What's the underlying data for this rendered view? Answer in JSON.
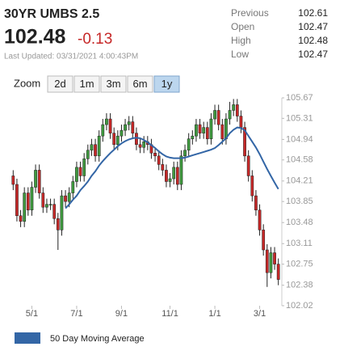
{
  "header": {
    "title": "30YR UMBS 2.5",
    "price": 102.48,
    "change": -0.13,
    "updated": "Last Updated: 03/31/2021 4:00:43PM"
  },
  "stats": [
    {
      "label": "Previous",
      "value": 102.61
    },
    {
      "label": "Open",
      "value": 102.47
    },
    {
      "label": "High",
      "value": 102.48
    },
    {
      "label": "Low",
      "value": 102.47
    }
  ],
  "zoom": {
    "label": "Zoom",
    "options": [
      "2d",
      "1m",
      "3m",
      "6m",
      "1y"
    ],
    "active": "1y"
  },
  "chart_data": {
    "type": "candlestick",
    "up_color": "#3f9a3f",
    "down_color": "#c62828",
    "categories": [
      null,
      null,
      null,
      null,
      null,
      "5/1",
      null,
      null,
      null,
      null,
      null,
      null,
      null,
      null,
      null,
      null,
      null,
      "7/1",
      null,
      null,
      null,
      null,
      null,
      null,
      null,
      null,
      null,
      null,
      null,
      "9/1",
      null,
      null,
      null,
      null,
      null,
      null,
      null,
      null,
      null,
      null,
      null,
      null,
      "11/1",
      null,
      null,
      null,
      null,
      null,
      null,
      null,
      null,
      null,
      null,
      null,
      "1/1",
      null,
      null,
      null,
      null,
      null,
      null,
      null,
      null,
      null,
      null,
      null,
      "3/1",
      null,
      null,
      null,
      null,
      null
    ],
    "open": [
      104.3,
      104.15,
      103.6,
      103.5,
      104.0,
      103.7,
      104.1,
      104.4,
      104.0,
      103.75,
      103.8,
      103.8,
      103.55,
      103.35,
      103.95,
      103.85,
      104.0,
      104.2,
      104.45,
      104.3,
      104.6,
      104.75,
      104.85,
      104.65,
      105.0,
      105.2,
      105.3,
      105.05,
      104.85,
      105.0,
      105.1,
      105.2,
      105.25,
      105.05,
      104.85,
      104.8,
      104.9,
      104.85,
      104.7,
      104.65,
      104.5,
      104.4,
      104.2,
      104.25,
      104.45,
      104.15,
      104.65,
      104.75,
      104.95,
      105.0,
      105.2,
      105.05,
      105.15,
      104.95,
      105.3,
      105.45,
      105.2,
      104.95,
      105.3,
      105.45,
      105.55,
      105.35,
      105.15,
      104.65,
      104.3,
      103.95,
      103.7,
      103.35,
      103.0,
      102.6,
      102.95,
      102.75
    ],
    "high": [
      104.4,
      104.25,
      103.7,
      104.1,
      104.1,
      104.2,
      104.5,
      104.5,
      104.1,
      103.9,
      103.9,
      103.9,
      103.65,
      104.05,
      104.05,
      104.1,
      104.3,
      104.55,
      104.55,
      104.7,
      104.85,
      104.95,
      104.95,
      105.1,
      105.3,
      105.4,
      105.4,
      105.15,
      105.1,
      105.2,
      105.3,
      105.35,
      105.35,
      105.15,
      104.95,
      105.0,
      105.0,
      104.95,
      104.8,
      104.75,
      104.6,
      104.5,
      104.35,
      104.55,
      104.55,
      104.75,
      104.85,
      105.05,
      105.1,
      105.3,
      105.3,
      105.25,
      105.25,
      105.4,
      105.55,
      105.55,
      105.3,
      105.4,
      105.6,
      105.65,
      105.65,
      105.45,
      105.25,
      104.75,
      104.4,
      104.05,
      103.8,
      103.45,
      103.1,
      103.05,
      103.05,
      102.85
    ],
    "low": [
      104.05,
      103.5,
      103.4,
      103.4,
      103.6,
      103.6,
      104.0,
      103.9,
      103.65,
      103.65,
      103.7,
      103.45,
      103.0,
      103.25,
      103.75,
      103.75,
      103.9,
      104.1,
      104.2,
      104.2,
      104.5,
      104.65,
      104.55,
      104.55,
      104.9,
      105.1,
      104.95,
      104.75,
      104.75,
      104.9,
      105.0,
      105.1,
      104.95,
      104.75,
      104.7,
      104.7,
      104.75,
      104.6,
      104.55,
      104.4,
      104.3,
      104.1,
      104.1,
      104.15,
      104.05,
      104.05,
      104.55,
      104.65,
      104.85,
      104.9,
      104.95,
      104.95,
      104.85,
      104.85,
      105.2,
      105.1,
      104.85,
      104.85,
      105.2,
      105.35,
      105.25,
      105.05,
      104.55,
      104.2,
      103.85,
      103.6,
      103.25,
      102.9,
      102.35,
      102.5,
      102.65,
      102.38
    ],
    "close": [
      104.15,
      103.6,
      103.5,
      104.0,
      103.7,
      104.1,
      104.4,
      104.0,
      103.75,
      103.8,
      103.8,
      103.55,
      103.35,
      103.95,
      103.85,
      104.0,
      104.2,
      104.45,
      104.3,
      104.6,
      104.75,
      104.85,
      104.65,
      105.0,
      105.2,
      105.3,
      105.05,
      104.85,
      105.0,
      105.1,
      105.2,
      105.25,
      105.05,
      104.85,
      104.8,
      104.9,
      104.85,
      104.7,
      104.65,
      104.5,
      104.4,
      104.2,
      104.25,
      104.45,
      104.15,
      104.65,
      104.75,
      104.95,
      105.0,
      105.2,
      105.05,
      105.15,
      104.95,
      105.3,
      105.45,
      105.2,
      104.95,
      105.3,
      105.45,
      105.55,
      105.35,
      105.15,
      104.65,
      104.3,
      103.95,
      103.7,
      103.35,
      103.0,
      102.6,
      102.95,
      102.75,
      102.48
    ],
    "series": [
      {
        "name": "50 Day Moving Average",
        "color": "#3366a6",
        "values": [
          null,
          null,
          null,
          null,
          null,
          null,
          null,
          null,
          null,
          null,
          null,
          null,
          null,
          null,
          103.73,
          103.8,
          103.88,
          103.95,
          104.05,
          104.12,
          104.2,
          104.3,
          104.38,
          104.48,
          104.56,
          104.63,
          104.7,
          104.76,
          104.82,
          104.87,
          104.91,
          104.94,
          104.96,
          104.97,
          104.96,
          104.93,
          104.89,
          104.84,
          104.79,
          104.73,
          104.68,
          104.64,
          104.62,
          104.61,
          104.61,
          104.61,
          104.62,
          104.64,
          104.66,
          104.68,
          104.7,
          104.72,
          104.74,
          104.76,
          104.79,
          104.84,
          104.9,
          104.96,
          105.05,
          105.11,
          105.15,
          105.14,
          105.1,
          105.0,
          104.9,
          104.8,
          104.68,
          104.55,
          104.42,
          104.3,
          104.18,
          104.07
        ]
      }
    ],
    "ylim": [
      102.02,
      105.67
    ],
    "yticks": [
      105.67,
      105.31,
      104.94,
      104.58,
      104.21,
      103.85,
      103.48,
      103.11,
      102.75,
      102.38,
      102.02
    ]
  }
}
